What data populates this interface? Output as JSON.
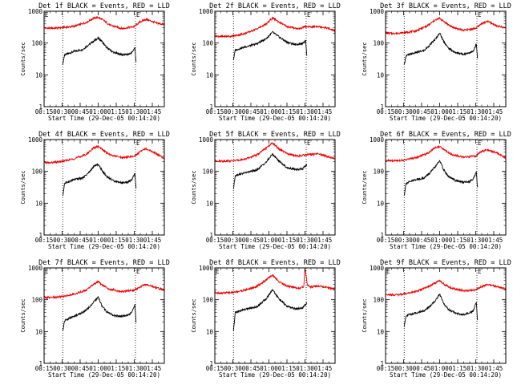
{
  "figure": {
    "x_tick_labels": [
      "00:15",
      "00:30",
      "00:45",
      "01:00",
      "01:15",
      "01:30",
      "01:45"
    ],
    "x_tick_values_min": [
      15,
      30,
      45,
      60,
      75,
      90,
      105
    ],
    "x_range_min": [
      15,
      115
    ],
    "y_tick_labels": [
      "1",
      "10",
      "100",
      "1000"
    ],
    "ylim": [
      1,
      1000
    ],
    "xlabel": "Start Time (29-Dec-05 00:14:20)",
    "ylabel": "Counts/sec",
    "colors": {
      "events": "#000000",
      "lld": "#ee0000",
      "axes": "#000000",
      "marker": "#000000"
    }
  },
  "chart_data": [
    {
      "type": "line",
      "title": "Det 1f BLACK = Events, RED = LLD",
      "markers": {
        "start_label": "E",
        "end_label": "E",
        "dotted_x_min": [
          30.5,
          91
        ]
      },
      "series": [
        {
          "name": "Events",
          "color": "#000000",
          "x": [
            30.5,
            32,
            40,
            47,
            52,
            58,
            60,
            63,
            67,
            73,
            80,
            85,
            88,
            90.5,
            91.5
          ],
          "y": [
            22,
            42,
            55,
            62,
            88,
            128,
            142,
            115,
            72,
            50,
            43,
            44,
            50,
            72,
            26
          ]
        },
        {
          "name": "LLD",
          "color": "#ee0000",
          "x": [
            15,
            20,
            30,
            40,
            50,
            56,
            60,
            64,
            70,
            80,
            90,
            95,
            100,
            108,
            115
          ],
          "y": [
            300,
            290,
            305,
            335,
            440,
            600,
            640,
            530,
            360,
            285,
            330,
            470,
            560,
            430,
            380
          ]
        }
      ]
    },
    {
      "type": "line",
      "title": "Det 2f BLACK = Events, RED = LLD",
      "markers": {
        "start_label": "",
        "end_label": "E",
        "dotted_x_min": [
          30.5,
          91
        ]
      },
      "series": [
        {
          "name": "Events",
          "color": "#000000",
          "x": [
            30.5,
            32,
            40,
            50,
            58,
            63,
            68,
            75,
            82,
            88,
            90.5,
            91.5
          ],
          "y": [
            30,
            60,
            75,
            95,
            140,
            220,
            160,
            105,
            90,
            95,
            120,
            42
          ]
        },
        {
          "name": "LLD",
          "color": "#ee0000",
          "x": [
            15,
            20,
            30,
            40,
            50,
            58,
            63,
            68,
            75,
            85,
            90,
            95,
            100,
            108,
            115
          ],
          "y": [
            170,
            160,
            165,
            200,
            280,
            400,
            620,
            470,
            330,
            280,
            330,
            320,
            340,
            300,
            240
          ]
        }
      ]
    },
    {
      "type": "line",
      "title": "Det 3f BLACK = Events, RED = LLD",
      "markers": {
        "start_label": "",
        "end_label": "E",
        "dotted_x_min": [
          30.5,
          91
        ]
      },
      "series": [
        {
          "name": "Events",
          "color": "#000000",
          "x": [
            30.5,
            32,
            40,
            47,
            52,
            57,
            60,
            63,
            67,
            73,
            80,
            85,
            88,
            90.5,
            91.5
          ],
          "y": [
            20,
            40,
            50,
            58,
            88,
            140,
            210,
            120,
            70,
            50,
            45,
            50,
            55,
            92,
            32
          ]
        },
        {
          "name": "LLD",
          "color": "#ee0000",
          "x": [
            15,
            20,
            30,
            40,
            50,
            56,
            60,
            64,
            70,
            80,
            90,
            95,
            100,
            108,
            115
          ],
          "y": [
            210,
            200,
            210,
            240,
            350,
            520,
            600,
            460,
            320,
            250,
            290,
            410,
            480,
            340,
            300
          ]
        }
      ]
    },
    {
      "type": "line",
      "title": "Det 4f BLACK = Events, RED = LLD",
      "markers": {
        "start_label": "",
        "end_label": "E",
        "dotted_x_min": [
          30.5,
          91
        ]
      },
      "series": [
        {
          "name": "Events",
          "color": "#000000",
          "x": [
            30.5,
            32,
            40,
            47,
            52,
            57,
            60,
            63,
            67,
            73,
            80,
            85,
            88,
            90.5,
            91.5
          ],
          "y": [
            16,
            42,
            55,
            62,
            90,
            150,
            165,
            110,
            70,
            50,
            44,
            46,
            55,
            85,
            28
          ]
        },
        {
          "name": "LLD",
          "color": "#ee0000",
          "x": [
            15,
            20,
            30,
            40,
            50,
            56,
            60,
            64,
            70,
            80,
            90,
            95,
            100,
            108,
            115
          ],
          "y": [
            190,
            185,
            205,
            250,
            340,
            540,
            610,
            470,
            330,
            270,
            300,
            420,
            520,
            370,
            250
          ]
        }
      ]
    },
    {
      "type": "line",
      "title": "Det 5f BLACK = Events, RED = LLD",
      "markers": {
        "start_label": "",
        "end_label": "E",
        "dotted_x_min": [
          30.5,
          91
        ]
      },
      "series": [
        {
          "name": "Events",
          "color": "#000000",
          "x": [
            30.5,
            32,
            40,
            50,
            58,
            63,
            68,
            75,
            82,
            88,
            90.5,
            91.5
          ],
          "y": [
            28,
            75,
            90,
            110,
            200,
            350,
            220,
            130,
            115,
            120,
            150,
            160
          ]
        },
        {
          "name": "LLD",
          "color": "#ee0000",
          "x": [
            15,
            20,
            30,
            40,
            50,
            58,
            63,
            68,
            75,
            85,
            90,
            95,
            100,
            108,
            115
          ],
          "y": [
            215,
            210,
            215,
            240,
            330,
            550,
            790,
            520,
            360,
            300,
            330,
            340,
            360,
            300,
            250
          ]
        }
      ]
    },
    {
      "type": "line",
      "title": "Det 6f BLACK = Events, RED = LLD",
      "markers": {
        "start_label": "",
        "end_label": "E",
        "dotted_x_min": [
          30.5,
          91
        ]
      },
      "series": [
        {
          "name": "Events",
          "color": "#000000",
          "x": [
            30.5,
            32,
            40,
            47,
            52,
            57,
            60,
            63,
            67,
            73,
            80,
            85,
            88,
            90.5,
            91.5
          ],
          "y": [
            17,
            42,
            55,
            62,
            90,
            150,
            220,
            120,
            70,
            52,
            46,
            48,
            60,
            95,
            30
          ]
        },
        {
          "name": "LLD",
          "color": "#ee0000",
          "x": [
            15,
            20,
            30,
            40,
            50,
            56,
            60,
            64,
            70,
            80,
            90,
            95,
            100,
            108,
            115
          ],
          "y": [
            220,
            215,
            225,
            270,
            370,
            560,
            600,
            470,
            340,
            280,
            300,
            430,
            470,
            380,
            260
          ]
        }
      ]
    },
    {
      "type": "line",
      "title": "Det 7f BLACK = Events, RED = LLD",
      "markers": {
        "start_label": "E",
        "end_label": "E",
        "dotted_x_min": [
          30.5,
          91
        ]
      },
      "series": [
        {
          "name": "Events",
          "color": "#000000",
          "x": [
            30.5,
            32,
            40,
            47,
            52,
            57,
            60,
            63,
            67,
            73,
            80,
            85,
            88,
            90.5,
            91.5
          ],
          "y": [
            10,
            22,
            30,
            40,
            55,
            90,
            120,
            65,
            42,
            32,
            30,
            33,
            40,
            70,
            20
          ]
        },
        {
          "name": "LLD",
          "color": "#ee0000",
          "x": [
            15,
            20,
            30,
            40,
            50,
            56,
            60,
            64,
            70,
            80,
            90,
            95,
            100,
            108,
            115
          ],
          "y": [
            120,
            115,
            125,
            150,
            200,
            300,
            370,
            280,
            210,
            180,
            200,
            260,
            300,
            240,
            200
          ]
        }
      ]
    },
    {
      "type": "line",
      "title": "Det 8f BLACK = Events, RED = LLD",
      "markers": {
        "start_label": "E",
        "end_label": "",
        "dotted_x_min": [
          30.5,
          91
        ]
      },
      "series": [
        {
          "name": "Events",
          "color": "#000000",
          "x": [
            30.5,
            32,
            40,
            50,
            58,
            63,
            68,
            75,
            82,
            88,
            90.5,
            91.5
          ],
          "y": [
            10,
            40,
            50,
            60,
            110,
            210,
            110,
            62,
            52,
            55,
            70,
            80
          ]
        },
        {
          "name": "LLD",
          "color": "#ee0000",
          "x": [
            15,
            20,
            30,
            40,
            50,
            58,
            63,
            68,
            75,
            85,
            89,
            90,
            92,
            95,
            100,
            108,
            115
          ],
          "y": [
            170,
            160,
            170,
            200,
            260,
            430,
            600,
            380,
            270,
            230,
            260,
            1000,
            280,
            250,
            270,
            240,
            220
          ]
        }
      ]
    },
    {
      "type": "line",
      "title": "Det 9f BLACK = Events, RED = LLD",
      "markers": {
        "start_label": "E",
        "end_label": "E",
        "dotted_x_min": [
          30.5,
          91
        ]
      },
      "series": [
        {
          "name": "Events",
          "color": "#000000",
          "x": [
            30.5,
            32,
            40,
            47,
            52,
            57,
            60,
            63,
            67,
            73,
            80,
            85,
            88,
            90.5,
            91.5
          ],
          "y": [
            14,
            32,
            38,
            45,
            62,
            100,
            150,
            80,
            50,
            38,
            34,
            38,
            45,
            85,
            22
          ]
        },
        {
          "name": "LLD",
          "color": "#ee0000",
          "x": [
            15,
            20,
            30,
            40,
            50,
            56,
            60,
            64,
            70,
            80,
            90,
            95,
            100,
            108,
            115
          ],
          "y": [
            150,
            140,
            150,
            180,
            250,
            330,
            400,
            300,
            230,
            190,
            200,
            260,
            300,
            260,
            220
          ]
        }
      ]
    }
  ]
}
